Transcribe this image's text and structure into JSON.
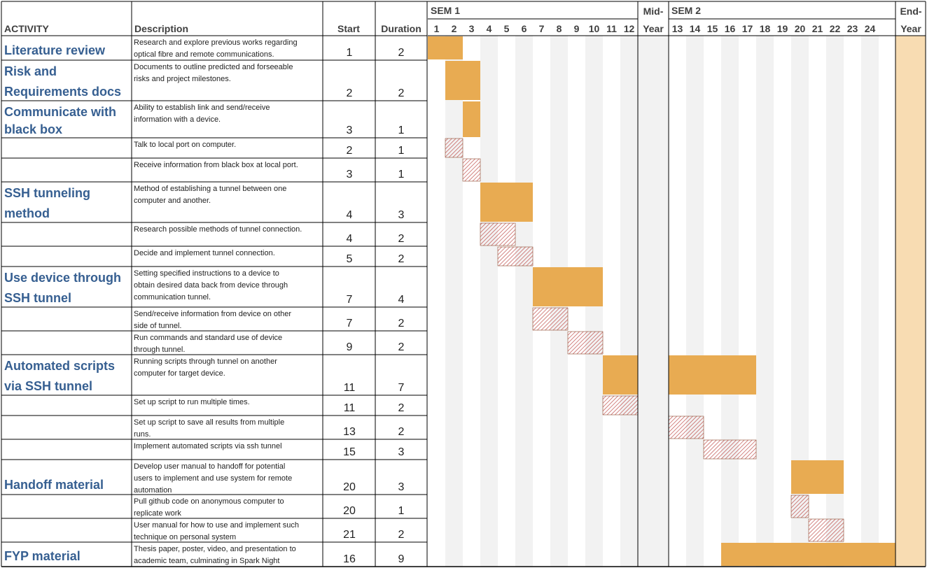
{
  "chart_data": {
    "type": "gantt",
    "headers": {
      "activity": "ACTIVITY",
      "description": "Description",
      "start": "Start",
      "duration": "Duration"
    },
    "semesters": [
      {
        "label": "SEM 1",
        "weeks": [
          1,
          2,
          3,
          4,
          5,
          6,
          7,
          8,
          9,
          10,
          11,
          12
        ]
      },
      {
        "label_top": "Mid-",
        "label_bottom": "Year"
      },
      {
        "label": "SEM 2",
        "weeks": [
          13,
          14,
          15,
          16,
          17,
          18,
          19,
          20,
          21,
          22,
          23,
          24
        ]
      },
      {
        "label_top": "End-",
        "label_bottom": "Year"
      }
    ],
    "tasks": [
      {
        "activity": [
          "Literature review"
        ],
        "description": [
          "Research and explore previous works regarding",
          "optical fibre and remote communications."
        ],
        "start": 1,
        "duration": 2,
        "kind": "main"
      },
      {
        "activity": [
          "Risk and",
          "Requirements docs"
        ],
        "description": [
          "Documents to outline predicted and forseeable",
          "risks and project milestones."
        ],
        "start": 2,
        "duration": 2,
        "kind": "main"
      },
      {
        "activity": [
          "Communicate with",
          "black box"
        ],
        "description": [
          "Ability to establish link and send/receive",
          "information with a device."
        ],
        "start": 3,
        "duration": 1,
        "kind": "main"
      },
      {
        "activity": [],
        "description": [
          "Talk to local port on computer."
        ],
        "start": 2,
        "duration": 1,
        "kind": "sub"
      },
      {
        "activity": [],
        "description": [
          "Receive information from black box at local port."
        ],
        "start": 3,
        "duration": 1,
        "kind": "sub"
      },
      {
        "activity": [
          "SSH tunneling",
          "method"
        ],
        "description": [
          "Method of establishing a tunnel  between one",
          "computer and another."
        ],
        "start": 4,
        "duration": 3,
        "kind": "main"
      },
      {
        "activity": [],
        "description": [
          "Research possible methods of tunnel connection."
        ],
        "start": 4,
        "duration": 2,
        "kind": "sub"
      },
      {
        "activity": [],
        "description": [
          "Decide and implement tunnel connection."
        ],
        "start": 5,
        "duration": 2,
        "kind": "sub"
      },
      {
        "activity": [
          "Use device through",
          "SSH tunnel"
        ],
        "description": [
          "Setting specified instructions to a device to",
          "obtain desired data back from device through",
          "communication tunnel."
        ],
        "start": 7,
        "duration": 4,
        "kind": "main"
      },
      {
        "activity": [],
        "description": [
          "Send/receive information from device on other",
          "side of tunnel."
        ],
        "start": 7,
        "duration": 2,
        "kind": "sub"
      },
      {
        "activity": [],
        "description": [
          "Run commands and standard use of device",
          "through tunnel."
        ],
        "start": 9,
        "duration": 2,
        "kind": "sub"
      },
      {
        "activity": [
          "Automated scripts",
          "via SSH tunnel"
        ],
        "description": [
          "Running scripts through tunnel on another",
          "computer for target device."
        ],
        "start": 11,
        "duration": 7,
        "kind": "main"
      },
      {
        "activity": [],
        "description": [
          "Set up script to run multiple times."
        ],
        "start": 11,
        "duration": 2,
        "kind": "sub"
      },
      {
        "activity": [],
        "description": [
          "Set up script to save all results from multiple",
          "runs."
        ],
        "start": 13,
        "duration": 2,
        "kind": "sub"
      },
      {
        "activity": [],
        "description": [
          "Implement automated scripts via ssh tunnel"
        ],
        "start": 15,
        "duration": 3,
        "kind": "sub"
      },
      {
        "activity": [
          "Handoff material"
        ],
        "description": [
          "Develop user manual to handoff for potential",
          "users to implement and use system for remote",
          "automation"
        ],
        "start": 20,
        "duration": 3,
        "kind": "main"
      },
      {
        "activity": [],
        "description": [
          "Pull github code on anonymous computer to",
          "replicate work"
        ],
        "start": 20,
        "duration": 1,
        "kind": "sub"
      },
      {
        "activity": [],
        "description": [
          "User manual for how to use and implement such",
          "technique on personal system"
        ],
        "start": 21,
        "duration": 2,
        "kind": "sub"
      },
      {
        "activity": [
          "FYP material"
        ],
        "description": [
          "Thesis paper, poster, video, and presentation to",
          "academic team, culminating in Spark Night"
        ],
        "start": 16,
        "duration": 9,
        "kind": "main"
      }
    ]
  },
  "colors": {
    "main_bar": "#e8ab52",
    "sub_hatch": "#c0504d",
    "alt_column": "#f2f2f2",
    "end_year": "#f8dcb2",
    "activity_text": "#365f91"
  }
}
